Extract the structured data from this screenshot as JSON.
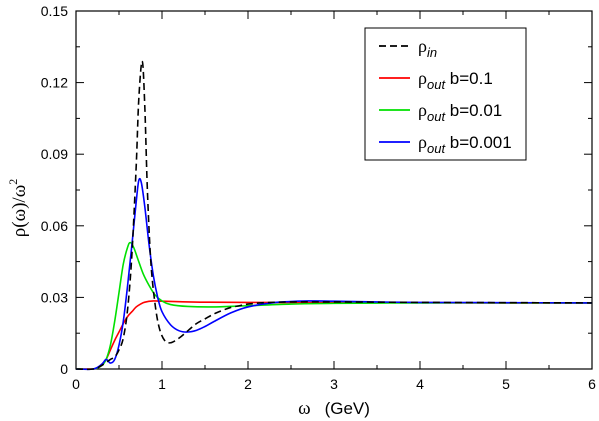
{
  "chart_data": {
    "type": "line",
    "xlabel": {
      "symbol": "ω",
      "unit": "(GeV)"
    },
    "ylabel": {
      "main": "ρ(ω)/ω",
      "sup": "2"
    },
    "xlim": [
      0,
      6
    ],
    "ylim": [
      0,
      0.15
    ],
    "xticks": [
      0,
      1,
      2,
      3,
      4,
      5,
      6
    ],
    "xtick_labels": [
      "0",
      "1",
      "2",
      "3",
      "4",
      "5",
      "6"
    ],
    "yticks": [
      0,
      0.03,
      0.06,
      0.09,
      0.12,
      0.15
    ],
    "ytick_labels": [
      "0",
      "0.03",
      "0.06",
      "0.09",
      "0.12",
      "0.15"
    ],
    "grid": false,
    "legend_position": "top-right",
    "series": [
      {
        "name": "ρ_in",
        "legend": {
          "sym": "ρ",
          "sub": "in",
          "suffix": ""
        },
        "color": "#000000",
        "dash": "7,4",
        "points": [
          [
            0,
            0
          ],
          [
            0.2,
            0
          ],
          [
            0.3,
            0.0015
          ],
          [
            0.4,
            0.004
          ],
          [
            0.45,
            0.005
          ],
          [
            0.5,
            0.008
          ],
          [
            0.55,
            0.013
          ],
          [
            0.6,
            0.025
          ],
          [
            0.65,
            0.048
          ],
          [
            0.7,
            0.085
          ],
          [
            0.73,
            0.113
          ],
          [
            0.77,
            0.129
          ],
          [
            0.8,
            0.11
          ],
          [
            0.83,
            0.075
          ],
          [
            0.87,
            0.045
          ],
          [
            0.92,
            0.027
          ],
          [
            0.97,
            0.017
          ],
          [
            1.03,
            0.012
          ],
          [
            1.1,
            0.011
          ],
          [
            1.2,
            0.013
          ],
          [
            1.3,
            0.016
          ],
          [
            1.4,
            0.019
          ],
          [
            1.5,
            0.021
          ],
          [
            1.6,
            0.023
          ],
          [
            1.7,
            0.0245
          ],
          [
            1.8,
            0.0258
          ],
          [
            1.9,
            0.0265
          ],
          [
            2.0,
            0.0272
          ],
          [
            2.2,
            0.0278
          ],
          [
            2.5,
            0.0281
          ],
          [
            3.0,
            0.0281
          ],
          [
            4.0,
            0.0279
          ],
          [
            5.0,
            0.0278
          ],
          [
            6.0,
            0.0277
          ]
        ]
      },
      {
        "name": "ρ_out b=0.1",
        "legend": {
          "sym": "ρ",
          "sub": "out",
          "suffix": " b=0.1"
        },
        "color": "#ff0000",
        "dash": "",
        "points": [
          [
            0,
            0
          ],
          [
            0.2,
            0
          ],
          [
            0.25,
            0.0005
          ],
          [
            0.3,
            0.002
          ],
          [
            0.35,
            0.004
          ],
          [
            0.4,
            0.008
          ],
          [
            0.45,
            0.012
          ],
          [
            0.5,
            0.0155
          ],
          [
            0.55,
            0.019
          ],
          [
            0.6,
            0.022
          ],
          [
            0.65,
            0.024
          ],
          [
            0.7,
            0.026
          ],
          [
            0.75,
            0.0272
          ],
          [
            0.8,
            0.028
          ],
          [
            0.9,
            0.0285
          ],
          [
            1.0,
            0.0284
          ],
          [
            1.2,
            0.0282
          ],
          [
            1.5,
            0.028
          ],
          [
            2.0,
            0.0279
          ],
          [
            3.0,
            0.0278
          ],
          [
            4.0,
            0.0278
          ],
          [
            5.0,
            0.0277
          ],
          [
            6.0,
            0.0277
          ]
        ]
      },
      {
        "name": "ρ_out b=0.01",
        "legend": {
          "sym": "ρ",
          "sub": "out",
          "suffix": " b=0.01"
        },
        "color": "#00e000",
        "dash": "",
        "points": [
          [
            0,
            0
          ],
          [
            0.2,
            0
          ],
          [
            0.3,
            0.0015
          ],
          [
            0.35,
            0.004
          ],
          [
            0.4,
            0.01
          ],
          [
            0.45,
            0.02
          ],
          [
            0.5,
            0.032
          ],
          [
            0.55,
            0.044
          ],
          [
            0.6,
            0.051
          ],
          [
            0.63,
            0.053
          ],
          [
            0.67,
            0.051
          ],
          [
            0.72,
            0.046
          ],
          [
            0.78,
            0.04
          ],
          [
            0.85,
            0.035
          ],
          [
            0.92,
            0.031
          ],
          [
            1.0,
            0.0285
          ],
          [
            1.1,
            0.027
          ],
          [
            1.3,
            0.0262
          ],
          [
            1.6,
            0.026
          ],
          [
            2.0,
            0.0265
          ],
          [
            2.5,
            0.0272
          ],
          [
            3.0,
            0.0275
          ],
          [
            4.0,
            0.0277
          ],
          [
            5.0,
            0.0277
          ],
          [
            6.0,
            0.0277
          ]
        ]
      },
      {
        "name": "ρ_out b=0.001",
        "legend": {
          "sym": "ρ",
          "sub": "out",
          "suffix": " b=0.001"
        },
        "color": "#0000ff",
        "dash": "",
        "points": [
          [
            0,
            0
          ],
          [
            0.2,
            0
          ],
          [
            0.3,
            0.002
          ],
          [
            0.35,
            0.004
          ],
          [
            0.4,
            0.0025
          ],
          [
            0.45,
            0.004
          ],
          [
            0.5,
            0.01
          ],
          [
            0.55,
            0.02
          ],
          [
            0.6,
            0.035
          ],
          [
            0.65,
            0.052
          ],
          [
            0.7,
            0.07
          ],
          [
            0.73,
            0.079
          ],
          [
            0.76,
            0.078
          ],
          [
            0.8,
            0.068
          ],
          [
            0.85,
            0.052
          ],
          [
            0.9,
            0.039
          ],
          [
            0.95,
            0.03
          ],
          [
            1.0,
            0.024
          ],
          [
            1.1,
            0.0185
          ],
          [
            1.2,
            0.016
          ],
          [
            1.3,
            0.0155
          ],
          [
            1.4,
            0.0162
          ],
          [
            1.5,
            0.0178
          ],
          [
            1.6,
            0.0198
          ],
          [
            1.8,
            0.0235
          ],
          [
            2.0,
            0.026
          ],
          [
            2.3,
            0.0278
          ],
          [
            2.7,
            0.0285
          ],
          [
            3.0,
            0.0284
          ],
          [
            3.5,
            0.0281
          ],
          [
            4.0,
            0.0279
          ],
          [
            5.0,
            0.0278
          ],
          [
            6.0,
            0.0277
          ]
        ]
      }
    ]
  }
}
